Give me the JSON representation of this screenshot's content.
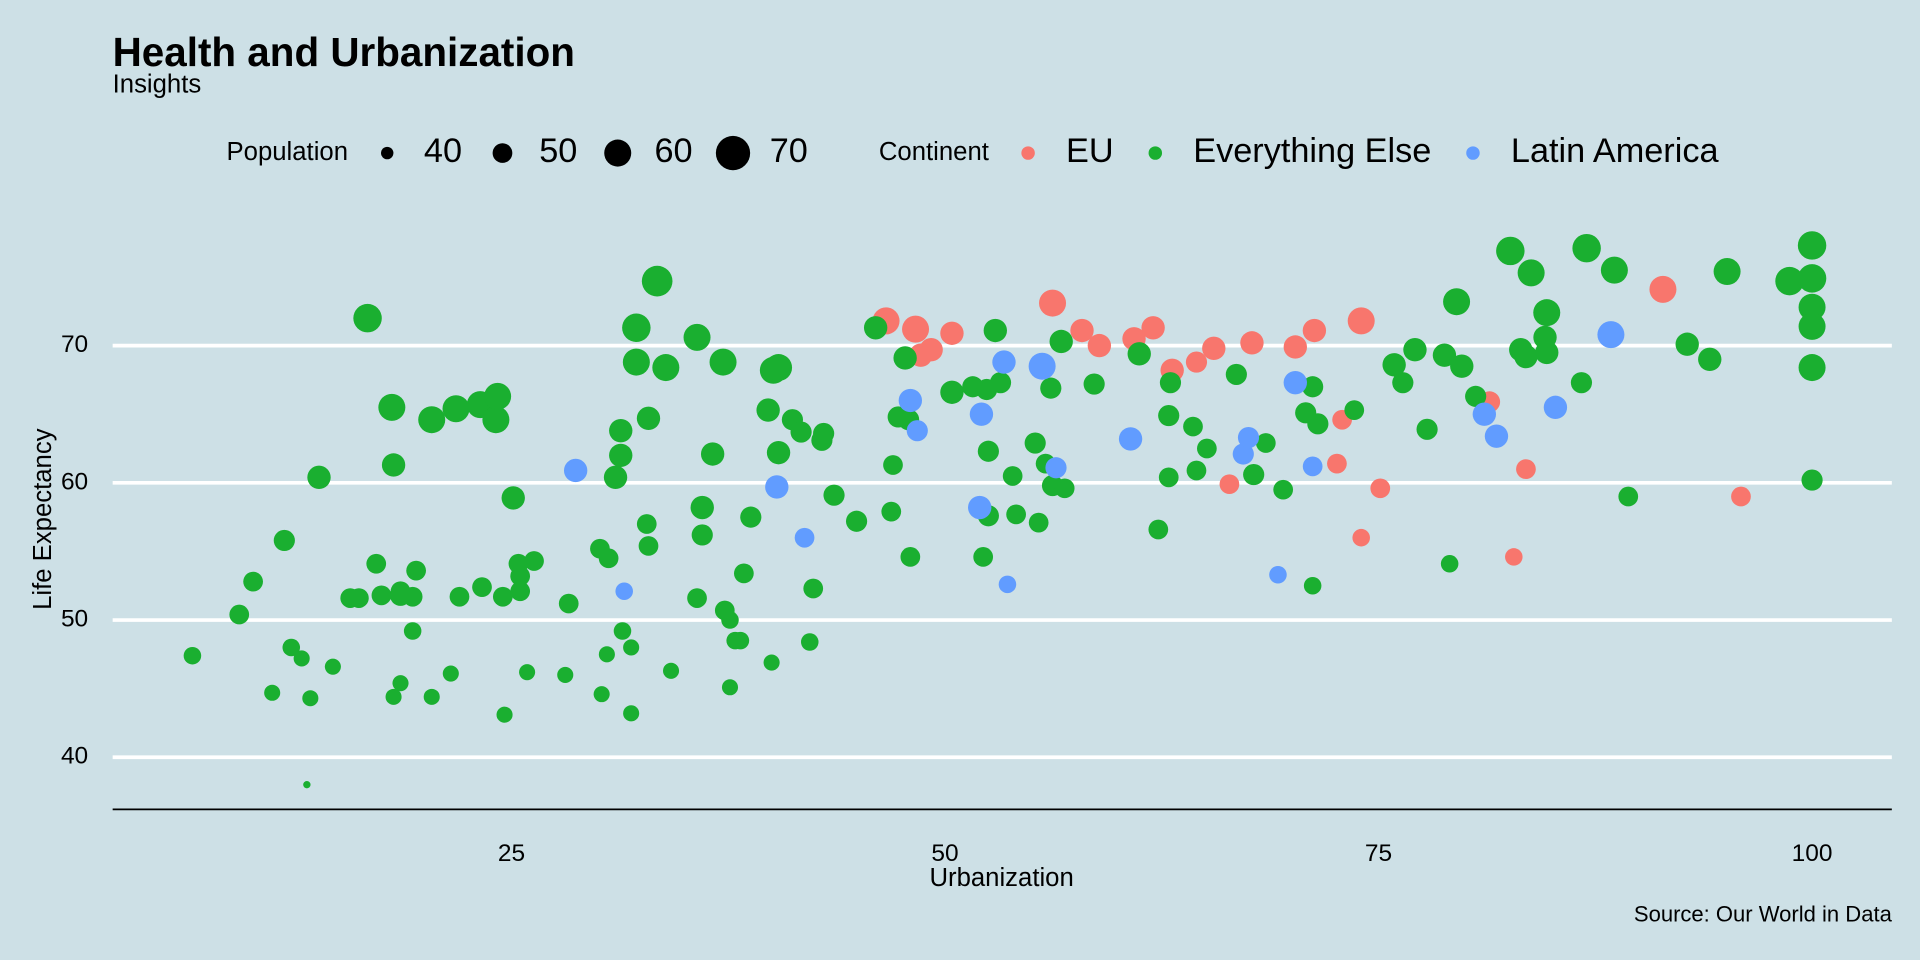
{
  "chart_data": {
    "type": "scatter",
    "title": "Health and Urbanization",
    "subtitle": "Insights",
    "caption": "Source: Our World in Data",
    "x_label": "Urbanization",
    "y_label": "Life Expectancy",
    "xlim": [
      2,
      104.6
    ],
    "ylim": [
      36.2,
      78.5
    ],
    "xticks": [
      25,
      50,
      75,
      100
    ],
    "yticks": [
      40,
      50,
      60,
      70
    ],
    "grid": true,
    "size_legend": {
      "title": "Population",
      "values": [
        40,
        50,
        60,
        70
      ]
    },
    "color_legend_title": "Continent",
    "series": [
      {
        "name": "EU",
        "color": "#F8766D",
        "x": [
          46.6,
          48.3,
          48.6,
          49.2,
          50.4,
          56.2,
          57.9,
          58.9,
          60.9,
          62.0,
          63.1,
          64.5,
          65.5,
          67.7,
          70.2,
          71.3,
          74.0,
          72.9,
          72.6,
          75.1,
          74.0,
          66.4,
          81.4,
          83.5,
          82.8,
          91.4,
          95.9
        ],
        "values": [
          71.8,
          71.2,
          69.3,
          69.7,
          70.9,
          73.1,
          71.1,
          70.0,
          70.5,
          71.3,
          68.2,
          68.8,
          69.8,
          70.2,
          69.9,
          71.1,
          71.8,
          64.6,
          61.4,
          59.6,
          56.0,
          59.9,
          65.9,
          61.0,
          54.6,
          74.1,
          59.0
        ],
        "sizes": [
          60,
          60,
          55,
          55,
          55,
          60,
          55,
          55,
          55,
          55,
          55,
          52,
          55,
          55,
          55,
          55,
          60,
          50,
          50,
          50,
          47,
          50,
          52,
          50,
          47,
          60,
          50
        ]
      },
      {
        "name": "Everything Else",
        "color": "#1AAF30",
        "x": [
          6.6,
          9.3,
          10.1,
          11.2,
          11.9,
          12.3,
          12.9,
          13.4,
          13.2,
          13.9,
          14.7,
          15.7,
          16.2,
          16.7,
          17.2,
          17.5,
          18.1,
          18.2,
          18.2,
          18.6,
          18.6,
          18.6,
          19.3,
          19.5,
          19.3,
          20.4,
          20.4,
          21.5,
          22.0,
          21.8,
          23.2,
          23.3,
          24.1,
          24.2,
          24.5,
          24.6,
          25.1,
          25.5,
          25.4,
          25.5,
          25.9,
          26.3,
          28.3,
          28.1,
          30.1,
          30.6,
          30.2,
          30.5,
          31.0,
          31.3,
          31.3,
          31.4,
          31.9,
          31.9,
          32.2,
          32.2,
          32.8,
          32.9,
          32.9,
          33.4,
          33.9,
          34.2,
          35.7,
          35.7,
          36.0,
          36.0,
          36.6,
          37.2,
          37.3,
          37.6,
          37.6,
          37.9,
          38.2,
          38.4,
          38.8,
          39.8,
          40.0,
          40.1,
          40.4,
          40.4,
          41.2,
          41.7,
          42.2,
          42.4,
          42.9,
          43.0,
          43.6,
          44.9,
          46.0,
          46.9,
          47.0,
          47.3,
          47.7,
          47.9,
          48.0,
          50.4,
          51.6,
          52.2,
          52.4,
          52.5,
          52.5,
          52.9,
          53.2,
          53.9,
          54.1,
          55.2,
          55.4,
          55.8,
          56.1,
          56.7,
          56.2,
          56.9,
          58.6,
          61.2,
          62.3,
          62.9,
          63.0,
          62.9,
          64.3,
          64.5,
          65.1,
          66.8,
          67.8,
          68.5,
          69.5,
          70.8,
          71.2,
          71.5,
          71.2,
          73.6,
          75.9,
          76.4,
          77.1,
          77.8,
          78.8,
          79.5,
          79.8,
          79.1,
          80.6,
          82.6,
          83.2,
          83.5,
          83.8,
          84.7,
          84.6,
          84.7,
          86.7,
          87.0,
          88.6,
          89.4,
          92.8,
          94.1,
          95.1,
          98.7,
          100,
          100,
          100,
          100,
          100,
          100
        ],
        "values": [
          47.4,
          50.4,
          52.8,
          44.7,
          55.8,
          48.0,
          47.2,
          44.3,
          38.0,
          60.4,
          46.6,
          51.6,
          51.6,
          72.0,
          54.1,
          51.8,
          65.5,
          61.3,
          44.4,
          45.4,
          51.8,
          52.1,
          51.7,
          53.6,
          49.2,
          64.6,
          44.4,
          46.1,
          51.7,
          65.4,
          65.7,
          52.4,
          64.6,
          66.3,
          51.7,
          43.1,
          58.9,
          53.2,
          54.1,
          52.1,
          46.2,
          54.3,
          51.2,
          46.0,
          55.2,
          54.5,
          44.6,
          47.5,
          60.4,
          62.0,
          63.8,
          49.2,
          48.0,
          43.2,
          71.3,
          68.8,
          57.0,
          55.4,
          64.7,
          74.7,
          68.4,
          46.3,
          70.6,
          51.6,
          58.2,
          56.2,
          62.1,
          68.8,
          50.7,
          50.0,
          45.1,
          48.5,
          48.5,
          53.4,
          57.5,
          65.3,
          46.9,
          68.2,
          68.4,
          62.2,
          64.6,
          63.7,
          48.4,
          52.3,
          63.1,
          63.6,
          59.1,
          57.2,
          71.3,
          57.9,
          61.3,
          64.8,
          69.1,
          64.6,
          54.6,
          66.6,
          67.0,
          54.6,
          66.8,
          62.3,
          57.6,
          71.1,
          67.3,
          60.5,
          57.7,
          62.9,
          57.1,
          61.4,
          66.9,
          70.3,
          59.8,
          59.6,
          67.2,
          69.4,
          56.6,
          60.4,
          67.3,
          64.9,
          64.1,
          60.9,
          62.5,
          67.9,
          60.6,
          62.9,
          59.5,
          65.1,
          67.0,
          64.3,
          52.5,
          65.3,
          68.6,
          67.3,
          69.7,
          63.9,
          69.3,
          73.2,
          68.5,
          54.1,
          66.3,
          76.9,
          69.7,
          69.2,
          75.3,
          72.4,
          70.6,
          69.5,
          67.3,
          77.1,
          75.5,
          59.0,
          70.1,
          69.0,
          75.4,
          74.7,
          77.3,
          74.9,
          72.8,
          71.4,
          68.4,
          60.2
        ],
        "sizes": [
          47,
          50,
          50,
          45,
          52,
          47,
          45,
          45,
          33,
          55,
          45,
          50,
          50,
          62,
          50,
          50,
          60,
          55,
          45,
          45,
          52,
          50,
          50,
          50,
          47,
          60,
          45,
          45,
          50,
          60,
          60,
          50,
          60,
          60,
          50,
          45,
          55,
          50,
          50,
          50,
          45,
          50,
          50,
          45,
          50,
          50,
          45,
          45,
          55,
          55,
          55,
          47,
          45,
          45,
          62,
          60,
          50,
          50,
          55,
          65,
          60,
          45,
          60,
          50,
          55,
          52,
          55,
          60,
          50,
          47,
          45,
          47,
          47,
          50,
          52,
          55,
          45,
          60,
          60,
          55,
          52,
          52,
          47,
          50,
          52,
          52,
          52,
          52,
          55,
          50,
          50,
          52,
          55,
          52,
          50,
          55,
          52,
          50,
          52,
          52,
          52,
          55,
          52,
          50,
          50,
          52,
          50,
          50,
          52,
          55,
          52,
          50,
          52,
          55,
          50,
          50,
          52,
          52,
          50,
          50,
          50,
          52,
          52,
          50,
          50,
          52,
          52,
          52,
          47,
          50,
          55,
          52,
          55,
          52,
          55,
          60,
          55,
          47,
          52,
          62,
          55,
          55,
          60,
          60,
          55,
          55,
          52,
          62,
          60,
          50,
          55,
          55,
          60,
          62,
          62,
          62,
          60,
          60,
          60,
          52
        ]
      },
      {
        "name": "Latin America",
        "color": "#619CFF",
        "x": [
          28.7,
          31.5,
          40.3,
          41.9,
          48.0,
          48.4,
          52.1,
          52.0,
          53.4,
          55.6,
          56.4,
          53.6,
          60.7,
          67.2,
          67.5,
          69.2,
          70.2,
          71.2,
          81.1,
          81.8,
          85.2,
          88.4
        ],
        "values": [
          60.9,
          52.1,
          59.7,
          56.0,
          66.0,
          63.8,
          65.0,
          58.2,
          68.8,
          68.5,
          61.1,
          52.6,
          63.2,
          62.1,
          63.3,
          53.3,
          67.3,
          61.2,
          65.0,
          63.4,
          65.5,
          70.8
        ],
        "sizes": [
          55,
          47,
          55,
          50,
          55,
          52,
          55,
          55,
          55,
          60,
          52,
          47,
          55,
          52,
          52,
          47,
          55,
          50,
          55,
          55,
          55,
          60
        ]
      }
    ]
  }
}
